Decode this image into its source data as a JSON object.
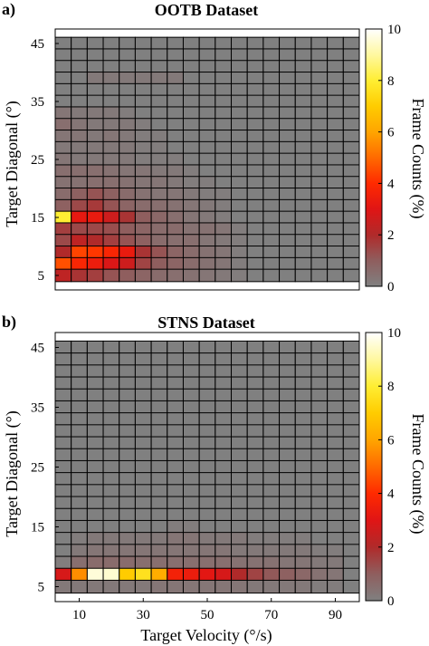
{
  "panels": [
    {
      "letter": "a)",
      "title": "OOTB Dataset",
      "ylabel": "Target Diagonal (°)",
      "colorbar_label": "Frame Counts (%)"
    },
    {
      "letter": "b)",
      "title": "STNS Dataset",
      "ylabel": "Target Diagonal (°)",
      "colorbar_label": "Frame Counts (%)",
      "xlabel": "Target Velocity (°/s)"
    }
  ],
  "colors": {
    "cell_zero": "#808080",
    "cell_border": "#000000",
    "colormap": [
      "#808080",
      "#8f5e5e",
      "#b02a2a",
      "#e01515",
      "#ff2a00",
      "#ff6a00",
      "#ffa500",
      "#ffcc00",
      "#ffee33",
      "#fff8a0",
      "#ffffff"
    ]
  },
  "chart_data": [
    {
      "type": "heatmap",
      "title": "OOTB Dataset",
      "xlabel": "",
      "ylabel": "Target Diagonal (°)",
      "colorbar_label": "Frame Counts (%)",
      "x_range": [
        2.5,
        97.5
      ],
      "y_range": [
        2.5,
        47.5
      ],
      "x_ticks": [],
      "y_ticks": [
        5,
        15,
        25,
        35,
        45
      ],
      "colorbar_ticks": [
        0,
        2,
        4,
        6,
        8,
        10
      ],
      "x_centers": [
        5,
        10,
        15,
        20,
        25,
        30,
        35,
        40,
        45,
        50,
        55,
        60,
        65,
        70,
        75,
        80,
        85,
        90,
        95
      ],
      "y_centers": [
        45,
        43,
        41,
        39,
        37,
        35,
        33,
        31,
        29,
        27,
        25,
        23,
        21,
        19,
        17,
        15,
        13,
        11,
        9,
        7,
        5
      ],
      "values": [
        [
          0,
          0,
          0,
          0,
          0,
          0,
          0,
          0,
          0,
          0,
          0,
          0,
          0,
          0,
          0,
          0,
          0,
          0,
          0
        ],
        [
          0,
          0,
          0,
          0,
          0,
          0,
          0,
          0,
          0,
          0,
          0,
          0,
          0,
          0,
          0,
          0,
          0,
          0,
          0
        ],
        [
          0,
          0,
          0,
          0,
          0,
          0,
          0,
          0,
          0,
          0,
          0,
          0,
          0,
          0,
          0,
          0,
          0,
          0,
          0
        ],
        [
          0,
          0,
          0.2,
          0.2,
          0.2,
          0.2,
          0.2,
          0.2,
          0,
          0,
          0,
          0,
          0,
          0,
          0,
          0,
          0,
          0,
          0
        ],
        [
          0,
          0,
          0,
          0,
          0,
          0,
          0,
          0,
          0,
          0,
          0,
          0,
          0,
          0,
          0,
          0,
          0,
          0,
          0
        ],
        [
          0,
          0,
          0,
          0,
          0,
          0,
          0,
          0,
          0,
          0,
          0,
          0,
          0,
          0,
          0,
          0,
          0,
          0,
          0
        ],
        [
          0.3,
          0.2,
          0.2,
          0.2,
          0.1,
          0,
          0,
          0,
          0,
          0,
          0,
          0,
          0,
          0,
          0,
          0,
          0,
          0,
          0
        ],
        [
          0.5,
          0.3,
          0.2,
          0.2,
          0.2,
          0.1,
          0,
          0,
          0,
          0,
          0,
          0,
          0,
          0,
          0,
          0,
          0,
          0,
          0
        ],
        [
          0.3,
          0.3,
          0.2,
          0.3,
          0.2,
          0.1,
          0.1,
          0,
          0,
          0,
          0,
          0,
          0,
          0,
          0,
          0,
          0,
          0,
          0
        ],
        [
          0.2,
          0.2,
          0.2,
          0.2,
          0.2,
          0.1,
          0.1,
          0,
          0,
          0,
          0,
          0,
          0,
          0,
          0,
          0,
          0,
          0,
          0
        ],
        [
          0.3,
          0.2,
          0.2,
          0.2,
          0.2,
          0.1,
          0.1,
          0.1,
          0,
          0,
          0,
          0,
          0,
          0,
          0,
          0,
          0,
          0,
          0
        ],
        [
          0.5,
          0.5,
          0.5,
          0.4,
          0.3,
          0.3,
          0.2,
          0.2,
          0.1,
          0,
          0,
          0,
          0,
          0,
          0,
          0,
          0,
          0,
          0
        ],
        [
          0.4,
          0.4,
          0.5,
          0.5,
          0.4,
          0.3,
          0.3,
          0.2,
          0.1,
          0.1,
          0,
          0,
          0,
          0,
          0,
          0,
          0,
          0,
          0
        ],
        [
          0.6,
          0.9,
          1.2,
          0.9,
          0.6,
          0.4,
          0.3,
          0.3,
          0.2,
          0.1,
          0.1,
          0,
          0,
          0,
          0,
          0,
          0,
          0,
          0
        ],
        [
          0.9,
          1.4,
          1.7,
          1.2,
          0.8,
          0.6,
          0.5,
          0.4,
          0.3,
          0.2,
          0.1,
          0,
          0,
          0,
          0,
          0,
          0,
          0,
          0
        ],
        [
          8.0,
          3.2,
          3.3,
          2.6,
          1.8,
          1.0,
          0.7,
          0.5,
          0.3,
          0.2,
          0.1,
          0,
          0,
          0,
          0,
          0,
          0,
          0,
          0
        ],
        [
          1.6,
          1.4,
          1.4,
          1.3,
          1.0,
          0.8,
          0.6,
          0.6,
          0.4,
          0.4,
          0.3,
          0.1,
          0,
          0,
          0,
          0,
          0,
          0,
          0
        ],
        [
          1.4,
          2.3,
          2.0,
          1.6,
          1.2,
          0.9,
          0.6,
          0.5,
          0.5,
          0.3,
          0.2,
          0.1,
          0,
          0,
          0,
          0,
          0,
          0,
          0
        ],
        [
          2.0,
          4.4,
          4.2,
          3.8,
          3.3,
          1.8,
          1.2,
          0.8,
          0.6,
          0.4,
          0.3,
          0.1,
          0,
          0,
          0,
          0,
          0,
          0,
          0
        ],
        [
          4.6,
          3.8,
          3.4,
          2.9,
          2.6,
          1.5,
          1.0,
          0.8,
          0.6,
          0.4,
          0.3,
          0.1,
          0,
          0,
          0,
          0,
          0,
          0,
          0
        ],
        [
          2.3,
          1.8,
          1.6,
          1.2,
          1.0,
          0.8,
          0.6,
          0.5,
          0.4,
          0.3,
          0.2,
          0.1,
          0,
          0,
          0,
          0,
          0,
          0,
          0
        ]
      ]
    },
    {
      "type": "heatmap",
      "title": "STNS Dataset",
      "xlabel": "Target Velocity (°/s)",
      "ylabel": "Target Diagonal (°)",
      "colorbar_label": "Frame Counts (%)",
      "x_range": [
        2.5,
        97.5
      ],
      "y_range": [
        2.5,
        47.5
      ],
      "x_ticks": [
        10,
        30,
        50,
        70,
        90
      ],
      "y_ticks": [
        5,
        15,
        25,
        35,
        45
      ],
      "colorbar_ticks": [
        0,
        2,
        4,
        6,
        8,
        10
      ],
      "x_centers": [
        5,
        10,
        15,
        20,
        25,
        30,
        35,
        40,
        45,
        50,
        55,
        60,
        65,
        70,
        75,
        80,
        85,
        90,
        95
      ],
      "y_centers": [
        45,
        43,
        41,
        39,
        37,
        35,
        33,
        31,
        29,
        27,
        25,
        23,
        21,
        19,
        17,
        15,
        13,
        11,
        9,
        7,
        5
      ],
      "values": [
        [
          0,
          0,
          0,
          0,
          0,
          0,
          0,
          0,
          0,
          0,
          0,
          0,
          0,
          0,
          0,
          0,
          0,
          0,
          0
        ],
        [
          0,
          0,
          0,
          0,
          0,
          0,
          0,
          0,
          0,
          0,
          0,
          0,
          0,
          0,
          0,
          0,
          0,
          0,
          0
        ],
        [
          0,
          0,
          0,
          0,
          0,
          0,
          0,
          0,
          0,
          0,
          0,
          0,
          0,
          0,
          0,
          0,
          0,
          0,
          0
        ],
        [
          0,
          0,
          0,
          0,
          0,
          0,
          0,
          0,
          0,
          0,
          0,
          0,
          0,
          0,
          0,
          0,
          0,
          0,
          0
        ],
        [
          0,
          0,
          0,
          0,
          0,
          0,
          0,
          0,
          0,
          0,
          0,
          0,
          0,
          0,
          0,
          0,
          0,
          0,
          0
        ],
        [
          0,
          0,
          0,
          0,
          0,
          0,
          0,
          0,
          0,
          0,
          0,
          0,
          0,
          0,
          0,
          0,
          0,
          0,
          0
        ],
        [
          0,
          0,
          0,
          0,
          0,
          0,
          0,
          0,
          0,
          0,
          0,
          0,
          0,
          0,
          0,
          0,
          0,
          0,
          0
        ],
        [
          0,
          0,
          0,
          0,
          0,
          0,
          0,
          0,
          0,
          0,
          0,
          0,
          0,
          0,
          0,
          0,
          0,
          0,
          0
        ],
        [
          0,
          0,
          0,
          0,
          0,
          0,
          0,
          0,
          0,
          0,
          0,
          0,
          0,
          0,
          0,
          0,
          0,
          0,
          0
        ],
        [
          0,
          0,
          0,
          0,
          0,
          0,
          0,
          0,
          0,
          0,
          0,
          0,
          0,
          0,
          0,
          0,
          0,
          0,
          0
        ],
        [
          0,
          0,
          0,
          0,
          0,
          0,
          0,
          0,
          0,
          0,
          0,
          0,
          0,
          0,
          0,
          0,
          0,
          0,
          0
        ],
        [
          0,
          0,
          0,
          0,
          0,
          0,
          0,
          0,
          0,
          0,
          0,
          0,
          0,
          0,
          0,
          0,
          0,
          0,
          0
        ],
        [
          0,
          0,
          0,
          0,
          0,
          0,
          0,
          0,
          0,
          0,
          0,
          0,
          0,
          0,
          0,
          0,
          0,
          0,
          0
        ],
        [
          0,
          0,
          0,
          0,
          0,
          0,
          0,
          0,
          0,
          0,
          0,
          0,
          0,
          0,
          0,
          0,
          0,
          0,
          0
        ],
        [
          0,
          0,
          0,
          0,
          0,
          0,
          0,
          0,
          0,
          0,
          0,
          0,
          0,
          0,
          0,
          0,
          0,
          0,
          0
        ],
        [
          0,
          0,
          0,
          0,
          0,
          0,
          0,
          0.1,
          0.1,
          0,
          0,
          0,
          0,
          0,
          0,
          0,
          0,
          0,
          0
        ],
        [
          0,
          0.1,
          0.2,
          0.2,
          0.2,
          0.2,
          0.2,
          0.3,
          0.3,
          0.2,
          0.2,
          0.2,
          0.1,
          0.1,
          0.1,
          0.1,
          0,
          0,
          0
        ],
        [
          0,
          0.2,
          0.3,
          0.3,
          0.3,
          0.3,
          0.3,
          0.3,
          0.3,
          0.3,
          0.3,
          0.2,
          0.2,
          0.2,
          0.2,
          0.2,
          0.1,
          0.1,
          0
        ],
        [
          0.1,
          0.5,
          0.6,
          0.6,
          0.6,
          0.5,
          0.5,
          0.5,
          0.5,
          0.5,
          0.5,
          0.4,
          0.4,
          0.4,
          0.3,
          0.3,
          0.2,
          0.2,
          0
        ],
        [
          2.8,
          5.6,
          9.6,
          9.5,
          7.0,
          7.6,
          6.2,
          3.6,
          3.4,
          3.1,
          2.8,
          2.0,
          1.5,
          1.1,
          0.9,
          0.7,
          0.4,
          0.3,
          0
        ],
        [
          0.2,
          0.2,
          0.2,
          0.2,
          0.2,
          0.2,
          0.3,
          0.3,
          0.3,
          0.3,
          0.3,
          0.3,
          0.2,
          0.2,
          0.2,
          0.2,
          0.1,
          0.1,
          0
        ]
      ]
    }
  ]
}
